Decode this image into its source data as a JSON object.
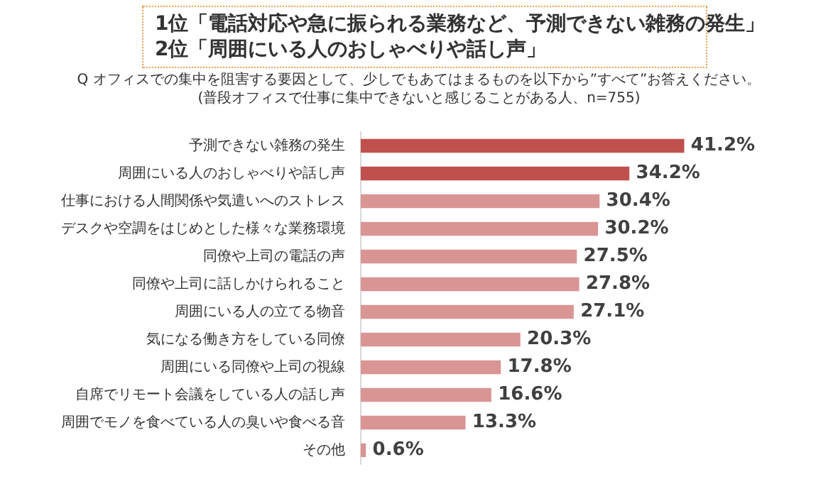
{
  "chart_data": {
    "type": "bar",
    "orientation": "horizontal",
    "title": "1位「電話対応や急に振られる業務など、予測できない雑務の発生」",
    "subtitle": "2位「周囲にいる人のおしゃべりや話し声」",
    "annotations": [
      "Q オフィスでの集中を阻害する要因として、少しでもあてはまるものを以下から”すべて”お答えください。",
      "(普段オフィスで仕事に集中できないと感じることがある人、n=755)"
    ],
    "categories": [
      "予測できない雑務の発生",
      "周囲にいる人のおしゃべりや話し声",
      "仕事における人間関係や気遣いへのストレス",
      "デスクや空調をはじめとした様々な業務環境",
      "同僚や上司の電話の声",
      "同僚や上司に話しかけられること",
      "周囲にいる人の立てる物音",
      "気になる働き方をしている同僚",
      "周囲にいる同僚や上司の視線",
      "自席でリモート会議をしている人の話し声",
      "周囲でモノを食べている人の臭いや食べる音",
      "その他"
    ],
    "values": [
      41.2,
      34.2,
      30.4,
      30.2,
      27.5,
      27.8,
      27.1,
      20.3,
      17.8,
      16.6,
      13.3,
      0.6
    ],
    "value_labels": [
      "41.2%",
      "34.2%",
      "30.4%",
      "30.2%",
      "27.5%",
      "27.8%",
      "27.1%",
      "20.3%",
      "17.8%",
      "16.6%",
      "13.3%",
      "0.6%"
    ],
    "colors": [
      "#c0504d",
      "#c0504d",
      "#d99594",
      "#d99594",
      "#d99594",
      "#d99594",
      "#d99594",
      "#d99594",
      "#d99594",
      "#d99594",
      "#d99594",
      "#d99594"
    ],
    "tick_labels": "y"
  }
}
